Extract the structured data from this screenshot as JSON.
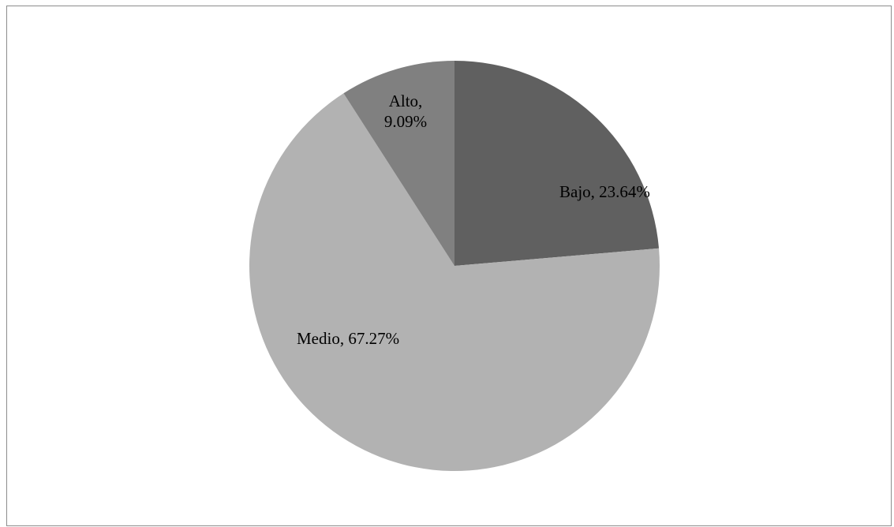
{
  "chart_data": {
    "type": "pie",
    "title": "",
    "start": "12 o'clock, clockwise",
    "slices": [
      {
        "label": "Bajo",
        "value": 23.64,
        "display": "Bajo, 23.64%",
        "color": "#606060"
      },
      {
        "label": "Medio",
        "value": 67.27,
        "display": "Medio, 67.27%",
        "color": "#b2b2b2"
      },
      {
        "label": "Alto",
        "value": 9.09,
        "display": "Alto, 9.09%",
        "color": "#808080"
      }
    ],
    "legend": "none"
  }
}
